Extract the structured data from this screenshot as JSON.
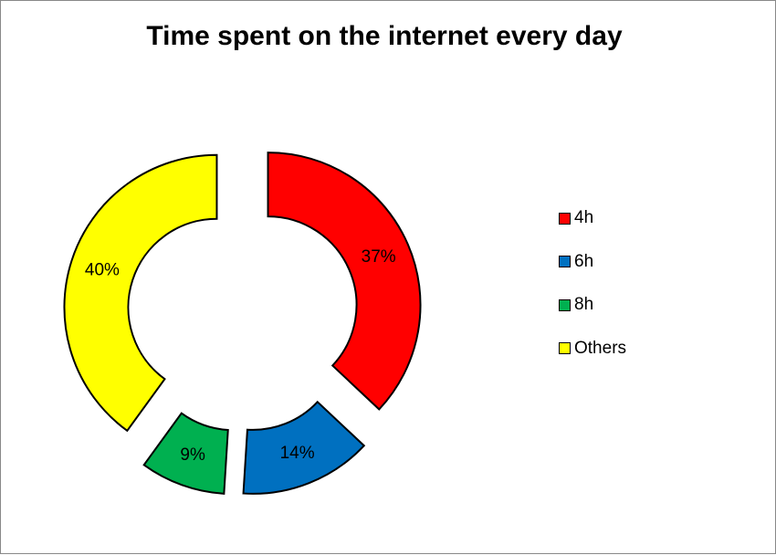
{
  "chart_data": {
    "type": "pie",
    "variant": "donut (exploded)",
    "title": "Time spent on the internet every day",
    "categories": [
      "4h",
      "6h",
      "8h",
      "Others"
    ],
    "values": [
      37,
      14,
      9,
      40
    ],
    "data_labels": [
      "37%",
      "14%",
      "9%",
      "40%"
    ],
    "colors": [
      "#ff0000",
      "#0070c0",
      "#00b050",
      "#ffff00"
    ],
    "legend_position": "right"
  }
}
